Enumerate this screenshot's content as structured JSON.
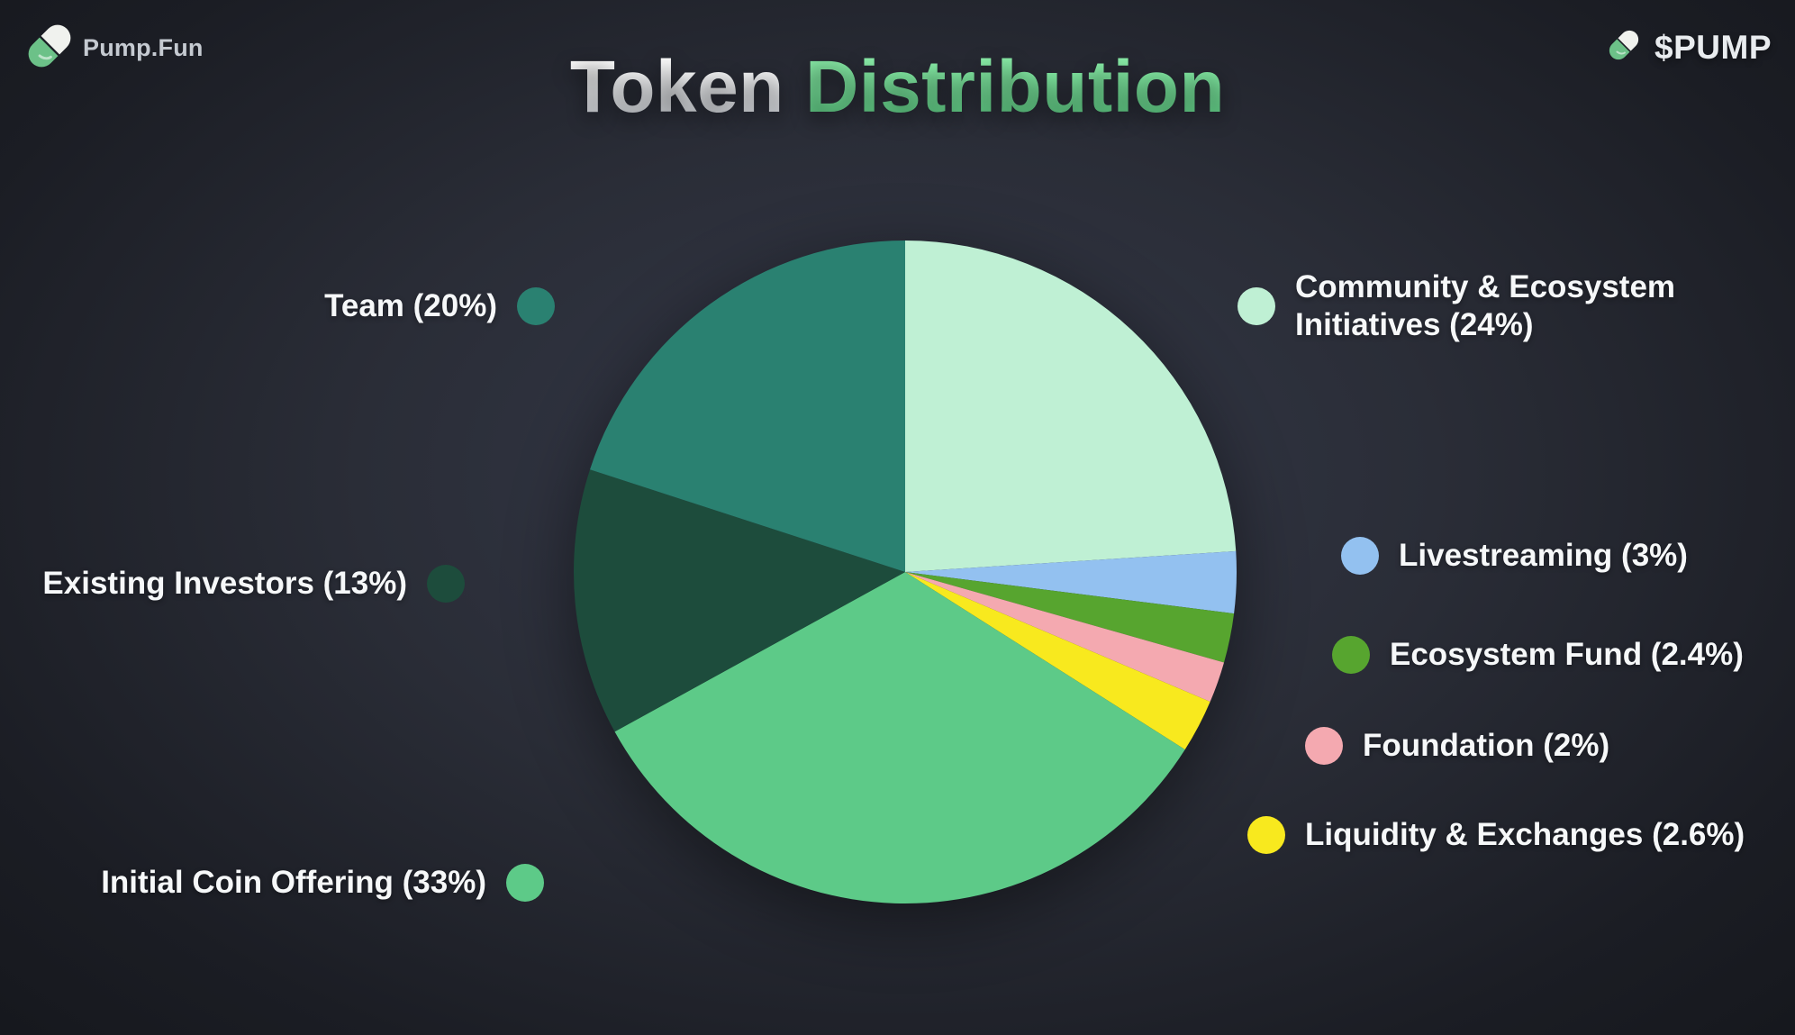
{
  "header": {
    "brand": "Pump.Fun",
    "ticker": "$PUMP"
  },
  "title": {
    "white_part": "Token",
    "green_part": "Distribution"
  },
  "chart_data": {
    "type": "pie",
    "title": "Token Distribution",
    "start_angle_deg": -90,
    "direction": "clockwise",
    "legend_position": "both-sides",
    "slices": [
      {
        "name": "Community & Ecosystem Initiatives",
        "value": 24,
        "color": "#bff0d4",
        "label": "Community & Ecosystem Initiatives (24%)",
        "legend_side": "right"
      },
      {
        "name": "Livestreaming",
        "value": 3,
        "color": "#93c1f0",
        "label": "Livestreaming (3%)",
        "legend_side": "right"
      },
      {
        "name": "Ecosystem Fund",
        "value": 2.4,
        "color": "#57a52f",
        "label": "Ecosystem Fund (2.4%)",
        "legend_side": "right"
      },
      {
        "name": "Foundation",
        "value": 2,
        "color": "#f4a9b0",
        "label": "Foundation (2%)",
        "legend_side": "right"
      },
      {
        "name": "Liquidity & Exchanges",
        "value": 2.6,
        "color": "#f8e91e",
        "label": "Liquidity & Exchanges (2.6%)",
        "legend_side": "right"
      },
      {
        "name": "Initial Coin Offering",
        "value": 33,
        "color": "#5dca88",
        "label": "Initial Coin Offering (33%)",
        "legend_side": "left"
      },
      {
        "name": "Existing Investors",
        "value": 13,
        "color": "#1d4c3c",
        "label": "Existing Investors (13%)",
        "legend_side": "left"
      },
      {
        "name": "Team",
        "value": 20,
        "color": "#2a8171",
        "label": "Team (20%)",
        "legend_side": "left"
      }
    ]
  }
}
